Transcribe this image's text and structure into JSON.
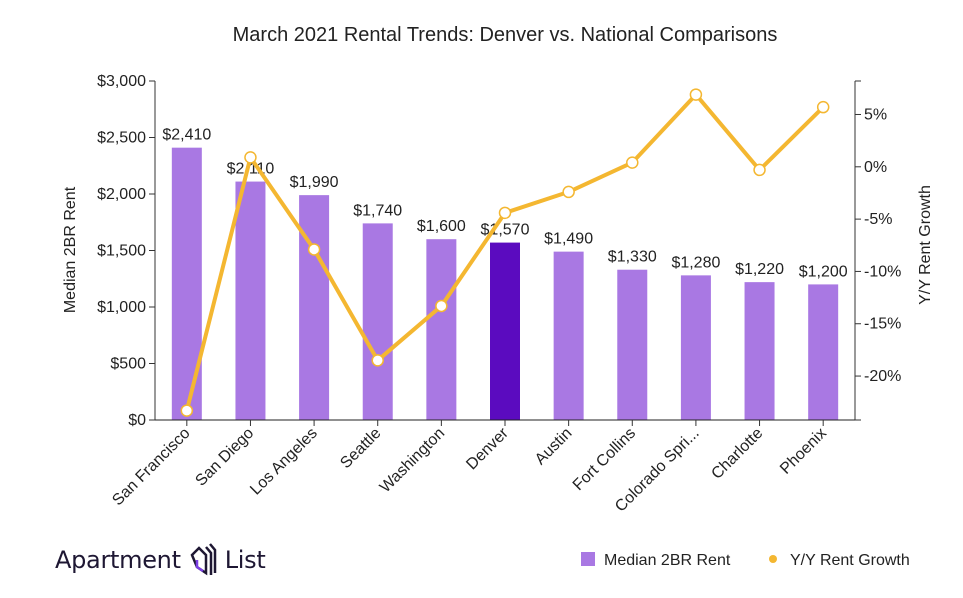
{
  "chart_data": {
    "type": "bar+line",
    "title": "March 2021 Rental Trends: Denver vs. National Comparisons",
    "categories": [
      "San Francisco",
      "San Diego",
      "Los Angeles",
      "Seattle",
      "Washington",
      "Denver",
      "Austin",
      "Fort Collins",
      "Colorado Spri...",
      "Charlotte",
      "Phoenix"
    ],
    "series": [
      {
        "name": "Median 2BR Rent",
        "type": "bar",
        "axis": "left",
        "color": "#a978e3",
        "highlight": {
          "category": "Denver",
          "color": "#5b0bbf"
        },
        "values": [
          2410,
          2110,
          1990,
          1740,
          1600,
          1570,
          1490,
          1330,
          1280,
          1220,
          1200
        ],
        "labels": [
          "$2,410",
          "$2,110",
          "$1,990",
          "$1,740",
          "$1,600",
          "$1,570",
          "$1,490",
          "$1,330",
          "$1,280",
          "$1,220",
          "$1,200"
        ]
      },
      {
        "name": "Y/Y Rent Growth",
        "type": "line",
        "axis": "right",
        "color": "#f4b731",
        "values": [
          -23.3,
          0.9,
          -7.9,
          -18.5,
          -13.3,
          -4.4,
          -2.4,
          0.4,
          6.9,
          -0.3,
          5.7
        ]
      }
    ],
    "ylabel_left": "Median 2BR Rent",
    "ylabel_right": "Y/Y Rent Growth",
    "ylim_left": [
      0,
      3000
    ],
    "ylim_right": [
      -24.2,
      8.2
    ],
    "yticks_left": [
      {
        "v": 0,
        "label": "$0"
      },
      {
        "v": 500,
        "label": "$500"
      },
      {
        "v": 1000,
        "label": "$1,000"
      },
      {
        "v": 1500,
        "label": "$1,500"
      },
      {
        "v": 2000,
        "label": "$2,000"
      },
      {
        "v": 2500,
        "label": "$2,500"
      },
      {
        "v": 3000,
        "label": "$3,000"
      }
    ],
    "yticks_right": [
      {
        "v": 5,
        "label": "5%"
      },
      {
        "v": 0,
        "label": "0%"
      },
      {
        "v": -5,
        "label": "-5%"
      },
      {
        "v": -10,
        "label": "-10%"
      },
      {
        "v": -15,
        "label": "-15%"
      },
      {
        "v": -20,
        "label": "-20%"
      }
    ],
    "grid": false,
    "legend": "bottom-right"
  },
  "branding": {
    "logo_text_left": "Apartment",
    "logo_text_right": "List"
  }
}
